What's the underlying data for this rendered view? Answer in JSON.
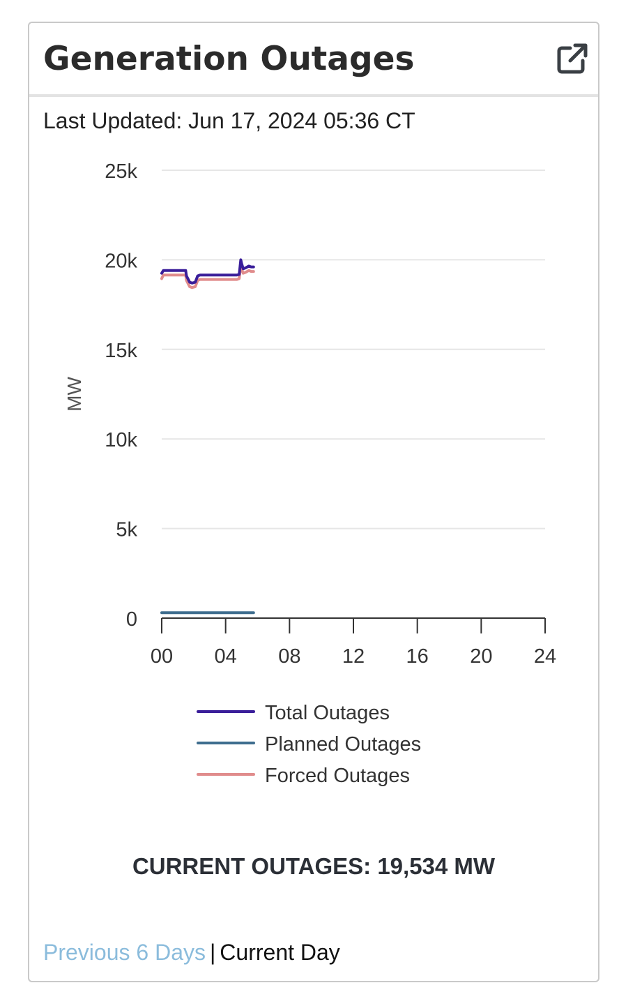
{
  "header": {
    "title": "Generation Outages",
    "external_link_icon": "external-link-icon"
  },
  "last_updated": "Last Updated: Jun 17, 2024 05:36 CT",
  "chart_data": {
    "type": "line",
    "ylabel": "MW",
    "xlabel": "",
    "ylim": [
      0,
      25000
    ],
    "xlim": [
      0,
      24
    ],
    "y_ticks": [
      0,
      5000,
      10000,
      15000,
      20000,
      25000
    ],
    "y_tick_labels": [
      "0",
      "5k",
      "10k",
      "15k",
      "20k",
      "25k"
    ],
    "x_ticks": [
      0,
      4,
      8,
      12,
      16,
      20,
      24
    ],
    "x_tick_labels": [
      "00",
      "04",
      "08",
      "12",
      "16",
      "20",
      "24"
    ],
    "grid": "horizontal",
    "legend_position": "bottom",
    "series": [
      {
        "name": "Total Outages",
        "color": "#3a1e9a",
        "x": [
          0,
          0.1,
          0.25,
          1.5,
          1.55,
          1.75,
          1.9,
          2.1,
          2.25,
          2.4,
          4.0,
          4.7,
          4.85,
          4.95,
          5.0,
          5.1,
          5.25,
          5.45,
          5.6,
          5.75
        ],
        "y": [
          19250,
          19400,
          19400,
          19400,
          19100,
          18750,
          18700,
          18750,
          19100,
          19150,
          19150,
          19150,
          19180,
          20000,
          19800,
          19500,
          19550,
          19650,
          19600,
          19600
        ]
      },
      {
        "name": "Planned Outages",
        "color": "#3e6d8e",
        "x": [
          0,
          5.75
        ],
        "y": [
          300,
          300
        ]
      },
      {
        "name": "Forced Outages",
        "color": "#e08c8c",
        "x": [
          0,
          0.1,
          0.25,
          1.5,
          1.55,
          1.75,
          1.9,
          2.1,
          2.25,
          2.4,
          4.0,
          4.7,
          4.85,
          4.95,
          5.0,
          5.1,
          5.25,
          5.45,
          5.6,
          5.75
        ],
        "y": [
          18950,
          19150,
          19150,
          19150,
          18850,
          18500,
          18450,
          18500,
          18850,
          18900,
          18900,
          18900,
          18950,
          19700,
          19500,
          19250,
          19300,
          19400,
          19350,
          19350
        ]
      }
    ]
  },
  "current_outages": "CURRENT OUTAGES: 19,534 MW",
  "footer": {
    "previous_link": "Previous 6 Days",
    "separator": "|",
    "current": "Current Day"
  },
  "colors": {
    "link": "#8bbcdc",
    "grid": "#e6e6e6",
    "axis": "#333333"
  }
}
